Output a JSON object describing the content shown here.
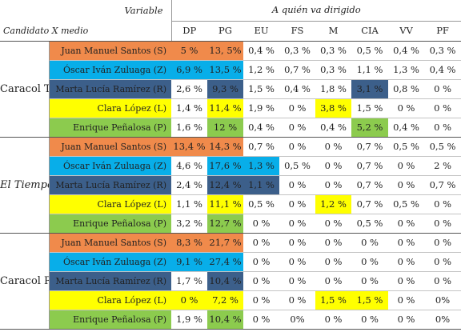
{
  "header": {
    "variable_label": "Variable",
    "target_label": "A quién va dirigido",
    "corner_label": "Candidato X medio",
    "columns": [
      "DP",
      "PG",
      "EU",
      "FS",
      "M",
      "CIA",
      "VV",
      "PF"
    ]
  },
  "colors": {
    "Juan Manuel Santos (S)": "#f08a4b",
    "Óscar Iván Zuluaga (Z)": "#08aee9",
    "Marta Lucía Ramírez (R)": "#3c5f8a",
    "Clara López (L)": "#ffff00",
    "Enrique Peñalosa (P)": "#8ccb4e"
  },
  "groups": [
    {
      "media": "Caracol TV",
      "rows": [
        {
          "candidate": "Juan Manuel Santos (S)",
          "values": [
            "5 %",
            "13, 5%",
            "0,4 %",
            "0,3 %",
            "0,3 %",
            "0,5 %",
            "0,4 %",
            "0,3 %"
          ],
          "highlight": [
            0,
            1
          ]
        },
        {
          "candidate": "Óscar Iván Zuluaga (Z)",
          "values": [
            "6,9 %",
            "13,5 %",
            "1,2 %",
            "0,7 %",
            "0,3 %",
            "1,1 %",
            "1,3 %",
            "0,4 %"
          ],
          "highlight": [
            0,
            1
          ]
        },
        {
          "candidate": "Marta Lucía Ramírez (R)",
          "values": [
            "2,6 %",
            "9,3 %",
            "1,5 %",
            "0,4 %",
            "1,8 %",
            "3,1 %",
            "0,8 %",
            "0 %"
          ],
          "highlight": [
            1,
            5
          ]
        },
        {
          "candidate": "Clara López (L)",
          "values": [
            "1,4 %",
            "11,4 %",
            "1,9 %",
            "0 %",
            "3,8 %",
            "1,5 %",
            "0 %",
            "0 %"
          ],
          "highlight": [
            1,
            4
          ]
        },
        {
          "candidate": "Enrique Peñalosa (P)",
          "values": [
            "1,6 %",
            "12 %",
            "0,4 %",
            "0 %",
            "0,4 %",
            "5,2 %",
            "0,4 %",
            "0 %"
          ],
          "highlight": [
            1,
            5
          ]
        }
      ]
    },
    {
      "media": "El Tiempo",
      "italic": true,
      "rows": [
        {
          "candidate": "Juan Manuel Santos (S)",
          "values": [
            "13,4 %",
            "14,3 %",
            "0,7 %",
            "0 %",
            "0 %",
            "0,7 %",
            "0,5 %",
            "0,5 %"
          ],
          "highlight": [
            0,
            1
          ]
        },
        {
          "candidate": "Óscar Iván Zuluaga (Z)",
          "values": [
            "4,6 %",
            "17,6 %",
            "1,3 %",
            "0,5 %",
            "0 %",
            "0,7 %",
            "0 %",
            "2 %"
          ],
          "highlight": [
            1,
            2
          ]
        },
        {
          "candidate": "Marta Lucía Ramírez (R)",
          "values": [
            "2,4 %",
            "12,4 %",
            "1,1 %",
            "0 %",
            "0 %",
            "0,7 %",
            "0 %",
            "0,7 %"
          ],
          "highlight": [
            1,
            2
          ]
        },
        {
          "candidate": "Clara López (L)",
          "values": [
            "1,1 %",
            "11,1 %",
            "0,5 %",
            "0 %",
            "1,2 %",
            "0,7 %",
            "0,5 %",
            "0 %"
          ],
          "highlight": [
            1,
            4
          ]
        },
        {
          "candidate": "Enrique Peñalosa (P)",
          "values": [
            "3,2 %",
            "12,7 %",
            "0 %",
            "0 %",
            "0 %",
            "0,5 %",
            "0 %",
            "0 %"
          ],
          "highlight": [
            1
          ]
        }
      ]
    },
    {
      "media": "Caracol Radio",
      "rows": [
        {
          "candidate": "Juan Manuel Santos (S)",
          "values": [
            "8,3 %",
            "21,7 %",
            "0 %",
            "0 %",
            "0 %",
            "0 %",
            "0 %",
            "0 %"
          ],
          "highlight": [
            0,
            1
          ]
        },
        {
          "candidate": "Óscar Iván Zuluaga (Z)",
          "values": [
            "9,1 %",
            "27,4 %",
            "0 %",
            "0 %",
            "0 %",
            "0 %",
            "0 %",
            "0 %"
          ],
          "highlight": [
            0,
            1
          ]
        },
        {
          "candidate": "Marta Lucía Ramírez (R)",
          "values": [
            "1,7 %",
            "10,4 %",
            "0 %",
            "0 %",
            "0 %",
            "0 %",
            "0 %",
            "0 %"
          ],
          "highlight": [
            1
          ]
        },
        {
          "candidate": "Clara López (L)",
          "values": [
            "0 %",
            "7,2 %",
            "0 %",
            "0 %",
            "1,5 %",
            "1,5 %",
            "0 %",
            "0%"
          ],
          "highlight": [
            0,
            1,
            4,
            5
          ]
        },
        {
          "candidate": "Enrique Peñalosa (P)",
          "values": [
            "1,9 %",
            "10,4 %",
            "0 %",
            "0%",
            "0 %",
            "0 %",
            "0 %",
            "0%"
          ],
          "highlight": [
            1
          ]
        }
      ]
    }
  ]
}
